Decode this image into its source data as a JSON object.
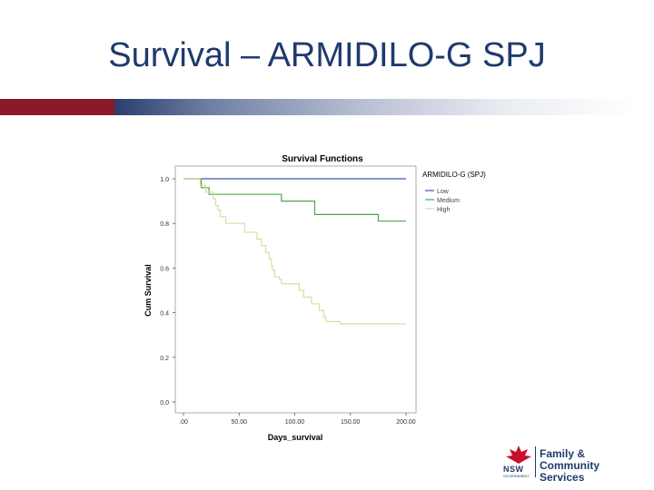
{
  "slide": {
    "title": "Survival – ARMIDILO-G SPJ"
  },
  "logo": {
    "org_short": "NSW",
    "org_sub": "GOVERNMENT",
    "line1": "Family &",
    "line2": "Community Services"
  },
  "colors": {
    "title": "#1f3a6e",
    "low": "#3b5aa8",
    "medium": "#4aa84a",
    "high": "#e2d9a8",
    "waratah": "#c8102e"
  },
  "chart_data": {
    "type": "line",
    "step": true,
    "title": "Survival Functions",
    "xlabel": "Days_survival",
    "ylabel": "Cum Survival",
    "xlim": [
      0,
      200
    ],
    "ylim": [
      0,
      1
    ],
    "xticks": [
      ".00",
      "50.00",
      "100.00",
      "150.00",
      "200.00"
    ],
    "yticks": [
      "0.0",
      "0.2",
      "0.4",
      "0.6",
      "0.8",
      "1.0"
    ],
    "legend_title": "ARMIDILO-G (SPJ)",
    "legend_position": "right",
    "series": [
      {
        "name": "Low",
        "color": "#3b5aa8",
        "x": [
          0,
          200
        ],
        "y": [
          1.0,
          1.0
        ]
      },
      {
        "name": "Medium",
        "color": "#4aa84a",
        "x": [
          0,
          16,
          16,
          23,
          23,
          88,
          88,
          118,
          118,
          175,
          175,
          200
        ],
        "y": [
          1.0,
          1.0,
          0.96,
          0.96,
          0.93,
          0.93,
          0.9,
          0.9,
          0.84,
          0.84,
          0.81,
          0.81
        ]
      },
      {
        "name": "High",
        "color": "#e2d9a8",
        "x": [
          0,
          15,
          15,
          20,
          20,
          27,
          27,
          29,
          29,
          31,
          31,
          33,
          33,
          38,
          38,
          55,
          55,
          66,
          66,
          70,
          70,
          74,
          74,
          77,
          77,
          79,
          79,
          80,
          80,
          82,
          82,
          86,
          86,
          88,
          88,
          104,
          104,
          108,
          108,
          115,
          115,
          122,
          122,
          126,
          126,
          128,
          128,
          141,
          141,
          200
        ],
        "y": [
          1.0,
          1.0,
          0.97,
          0.97,
          0.94,
          0.94,
          0.91,
          0.91,
          0.88,
          0.88,
          0.86,
          0.86,
          0.83,
          0.83,
          0.8,
          0.8,
          0.76,
          0.76,
          0.73,
          0.73,
          0.7,
          0.7,
          0.67,
          0.67,
          0.64,
          0.64,
          0.61,
          0.61,
          0.59,
          0.59,
          0.56,
          0.56,
          0.55,
          0.55,
          0.53,
          0.53,
          0.5,
          0.5,
          0.47,
          0.47,
          0.44,
          0.44,
          0.41,
          0.41,
          0.38,
          0.38,
          0.36,
          0.36,
          0.35,
          0.35
        ]
      }
    ]
  }
}
